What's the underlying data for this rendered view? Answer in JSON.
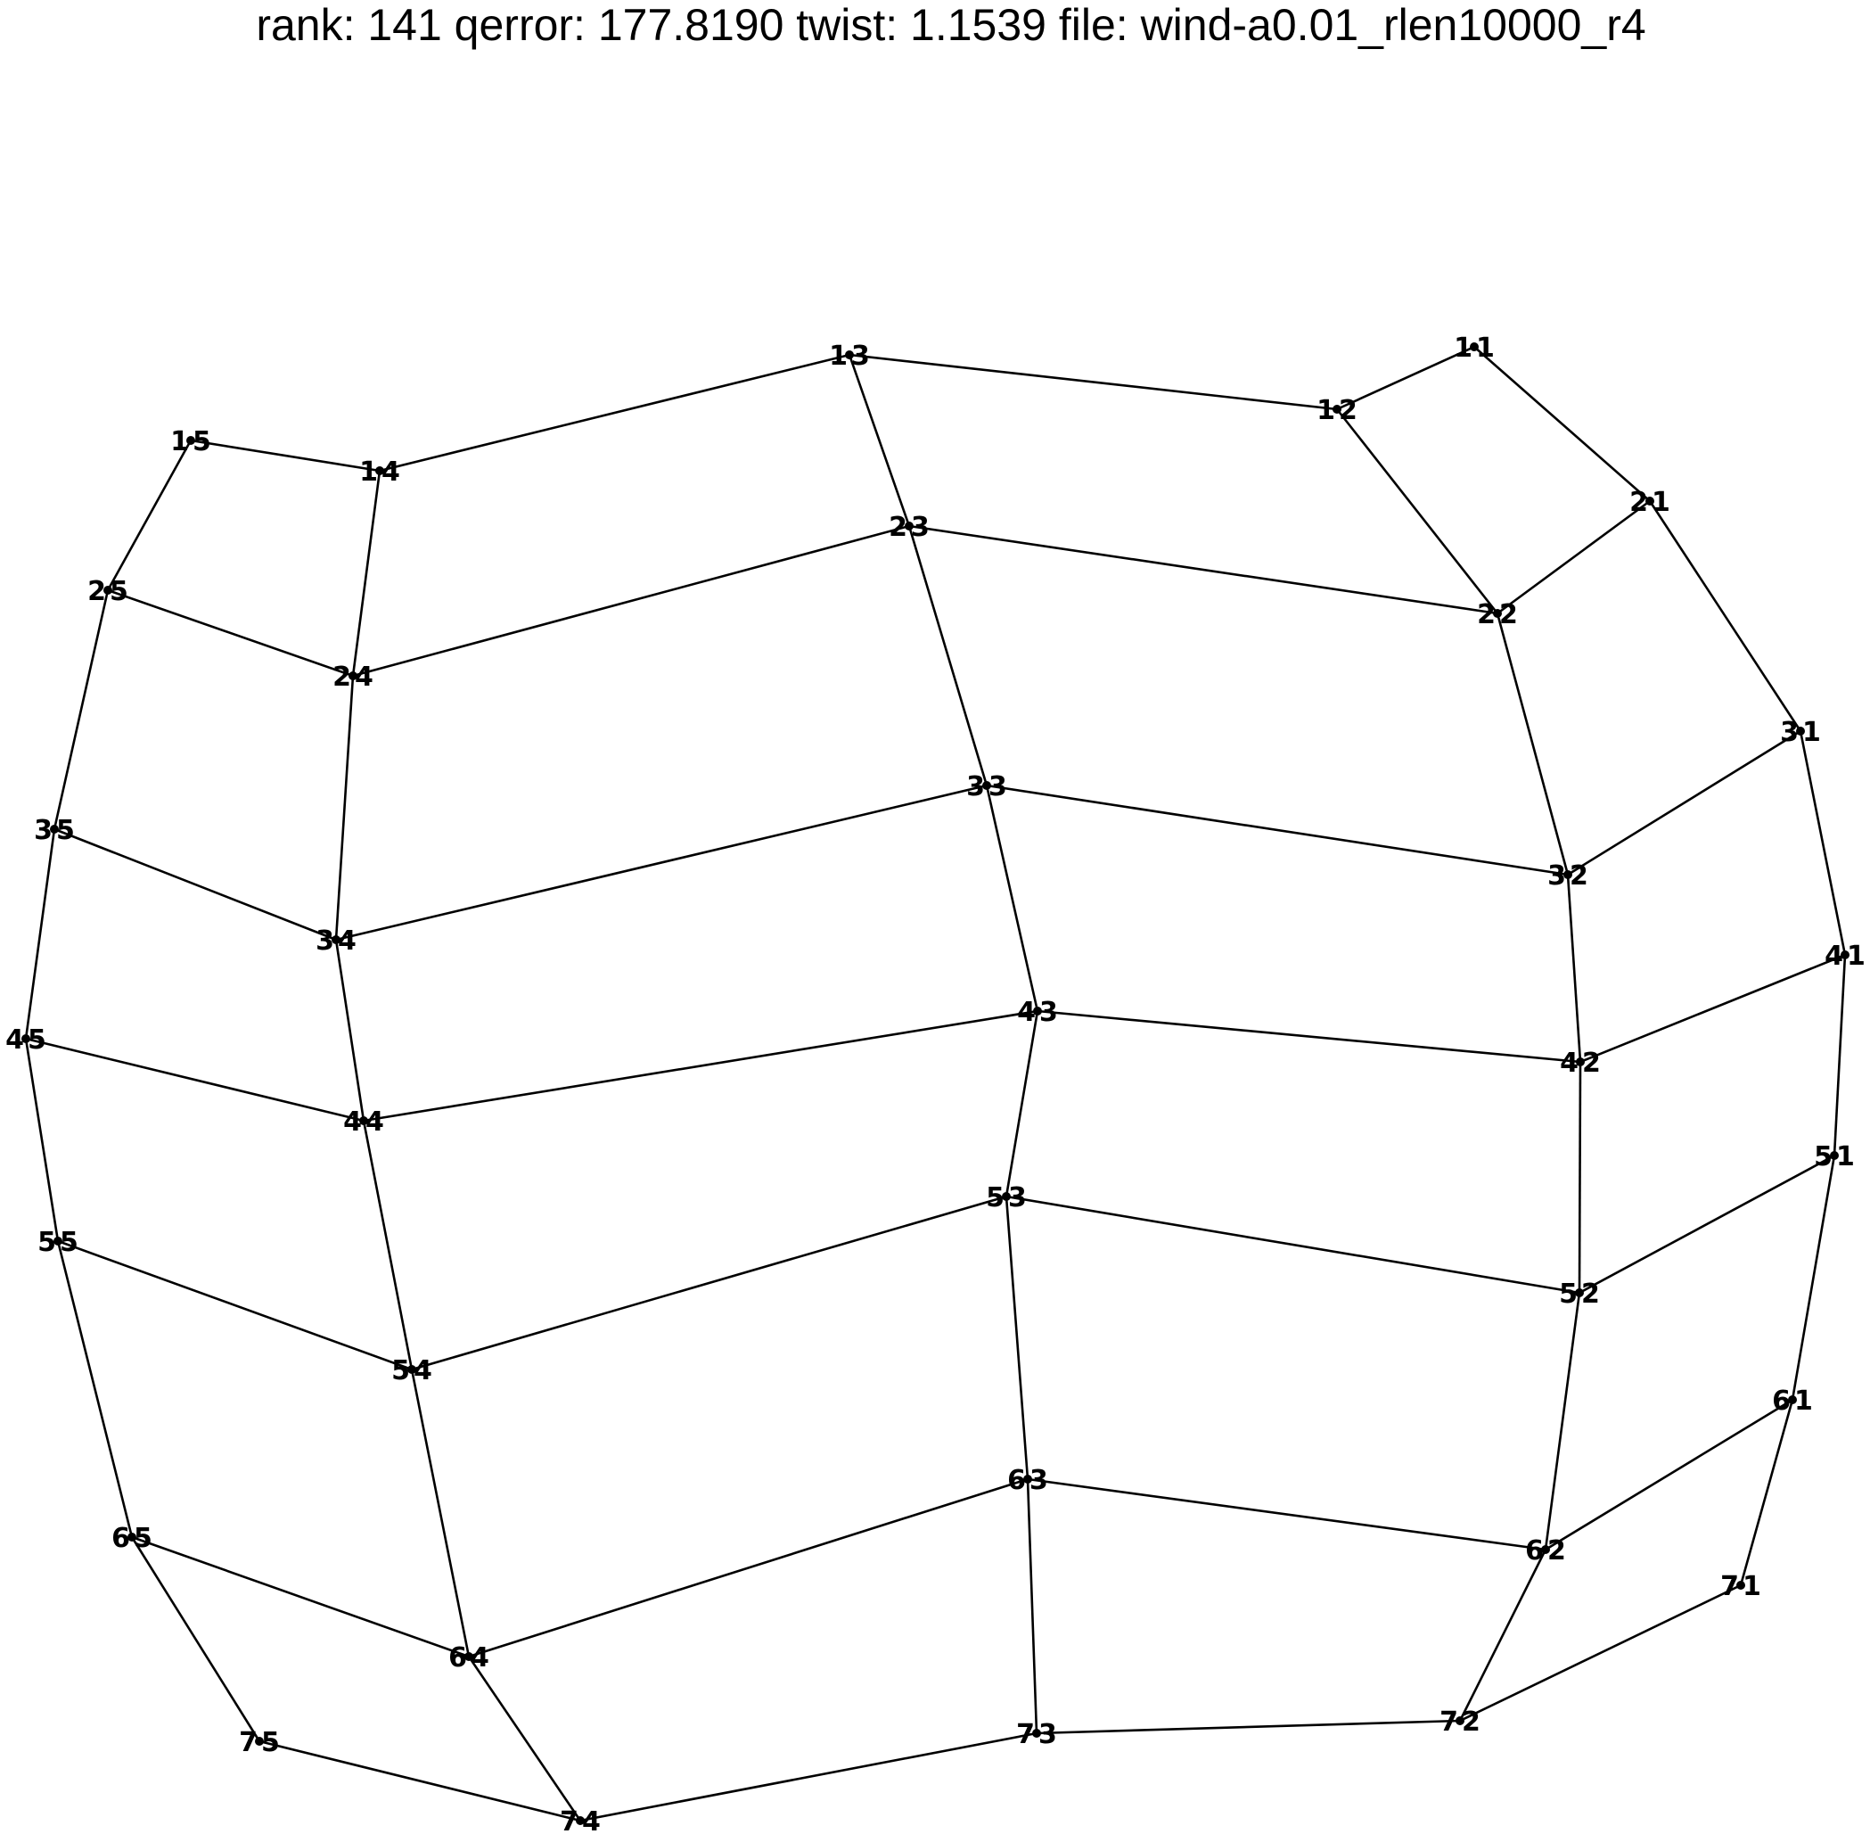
{
  "title": "rank: 141  qerror:  177.8190  twist: 1.1539  file: wind-a0.01_rlen10000_r4",
  "nodes": [
    {
      "id": "1-1",
      "row": "1",
      "col": "1"
    },
    {
      "id": "1-2",
      "row": "1",
      "col": "2"
    },
    {
      "id": "1-3",
      "row": "1",
      "col": "3"
    },
    {
      "id": "1-4",
      "row": "1",
      "col": "4"
    },
    {
      "id": "1-5",
      "row": "1",
      "col": "5"
    },
    {
      "id": "2-1",
      "row": "2",
      "col": "1"
    },
    {
      "id": "2-2",
      "row": "2",
      "col": "2"
    },
    {
      "id": "2-3",
      "row": "2",
      "col": "3"
    },
    {
      "id": "2-4",
      "row": "2",
      "col": "4"
    },
    {
      "id": "2-5",
      "row": "2",
      "col": "5"
    },
    {
      "id": "3-1",
      "row": "3",
      "col": "1"
    },
    {
      "id": "3-2",
      "row": "3",
      "col": "2"
    },
    {
      "id": "3-3",
      "row": "3",
      "col": "3"
    },
    {
      "id": "3-4",
      "row": "3",
      "col": "4"
    },
    {
      "id": "3-5",
      "row": "3",
      "col": "5"
    },
    {
      "id": "4-1",
      "row": "4",
      "col": "1"
    },
    {
      "id": "4-2",
      "row": "4",
      "col": "2"
    },
    {
      "id": "4-3",
      "row": "4",
      "col": "3"
    },
    {
      "id": "4-4",
      "row": "4",
      "col": "4"
    },
    {
      "id": "4-5",
      "row": "4",
      "col": "5"
    },
    {
      "id": "5-1",
      "row": "5",
      "col": "1"
    },
    {
      "id": "5-2",
      "row": "5",
      "col": "2"
    },
    {
      "id": "5-3",
      "row": "5",
      "col": "3"
    },
    {
      "id": "5-4",
      "row": "5",
      "col": "4"
    },
    {
      "id": "5-5",
      "row": "5",
      "col": "5"
    },
    {
      "id": "6-1",
      "row": "6",
      "col": "1"
    },
    {
      "id": "6-2",
      "row": "6",
      "col": "2"
    },
    {
      "id": "6-3",
      "row": "6",
      "col": "3"
    },
    {
      "id": "6-4",
      "row": "6",
      "col": "4"
    },
    {
      "id": "6-5",
      "row": "6",
      "col": "5"
    },
    {
      "id": "7-1",
      "row": "7",
      "col": "1"
    },
    {
      "id": "7-2",
      "row": "7",
      "col": "2"
    },
    {
      "id": "7-3",
      "row": "7",
      "col": "3"
    },
    {
      "id": "7-4",
      "row": "7",
      "col": "4"
    },
    {
      "id": "7-5",
      "row": "7",
      "col": "5"
    }
  ],
  "edges": [
    [
      "1-1",
      "1-2"
    ],
    [
      "1-2",
      "1-3"
    ],
    [
      "1-3",
      "1-4"
    ],
    [
      "1-4",
      "1-5"
    ],
    [
      "2-1",
      "2-2"
    ],
    [
      "2-2",
      "2-3"
    ],
    [
      "2-3",
      "2-4"
    ],
    [
      "2-4",
      "2-5"
    ],
    [
      "3-1",
      "3-2"
    ],
    [
      "3-2",
      "3-3"
    ],
    [
      "3-3",
      "3-4"
    ],
    [
      "3-4",
      "3-5"
    ],
    [
      "4-1",
      "4-2"
    ],
    [
      "4-2",
      "4-3"
    ],
    [
      "4-3",
      "4-4"
    ],
    [
      "4-4",
      "4-5"
    ],
    [
      "5-1",
      "5-2"
    ],
    [
      "5-2",
      "5-3"
    ],
    [
      "5-3",
      "5-4"
    ],
    [
      "5-4",
      "5-5"
    ],
    [
      "6-1",
      "6-2"
    ],
    [
      "6-2",
      "6-3"
    ],
    [
      "6-3",
      "6-4"
    ],
    [
      "6-4",
      "6-5"
    ],
    [
      "7-1",
      "7-2"
    ],
    [
      "7-2",
      "7-3"
    ],
    [
      "7-3",
      "7-4"
    ],
    [
      "7-4",
      "7-5"
    ],
    [
      "1-1",
      "2-1"
    ],
    [
      "2-1",
      "3-1"
    ],
    [
      "3-1",
      "4-1"
    ],
    [
      "4-1",
      "5-1"
    ],
    [
      "5-1",
      "6-1"
    ],
    [
      "6-1",
      "7-1"
    ],
    [
      "1-2",
      "2-2"
    ],
    [
      "2-2",
      "3-2"
    ],
    [
      "3-2",
      "4-2"
    ],
    [
      "4-2",
      "5-2"
    ],
    [
      "5-2",
      "6-2"
    ],
    [
      "6-2",
      "7-2"
    ],
    [
      "1-3",
      "2-3"
    ],
    [
      "2-3",
      "3-3"
    ],
    [
      "3-3",
      "4-3"
    ],
    [
      "4-3",
      "5-3"
    ],
    [
      "5-3",
      "6-3"
    ],
    [
      "6-3",
      "7-3"
    ],
    [
      "1-4",
      "2-4"
    ],
    [
      "2-4",
      "3-4"
    ],
    [
      "3-4",
      "4-4"
    ],
    [
      "4-4",
      "5-4"
    ],
    [
      "5-4",
      "6-4"
    ],
    [
      "6-4",
      "7-4"
    ],
    [
      "1-5",
      "2-5"
    ],
    [
      "2-5",
      "3-5"
    ],
    [
      "3-5",
      "4-5"
    ],
    [
      "4-5",
      "5-5"
    ],
    [
      "5-5",
      "6-5"
    ],
    [
      "6-5",
      "7-5"
    ]
  ]
}
